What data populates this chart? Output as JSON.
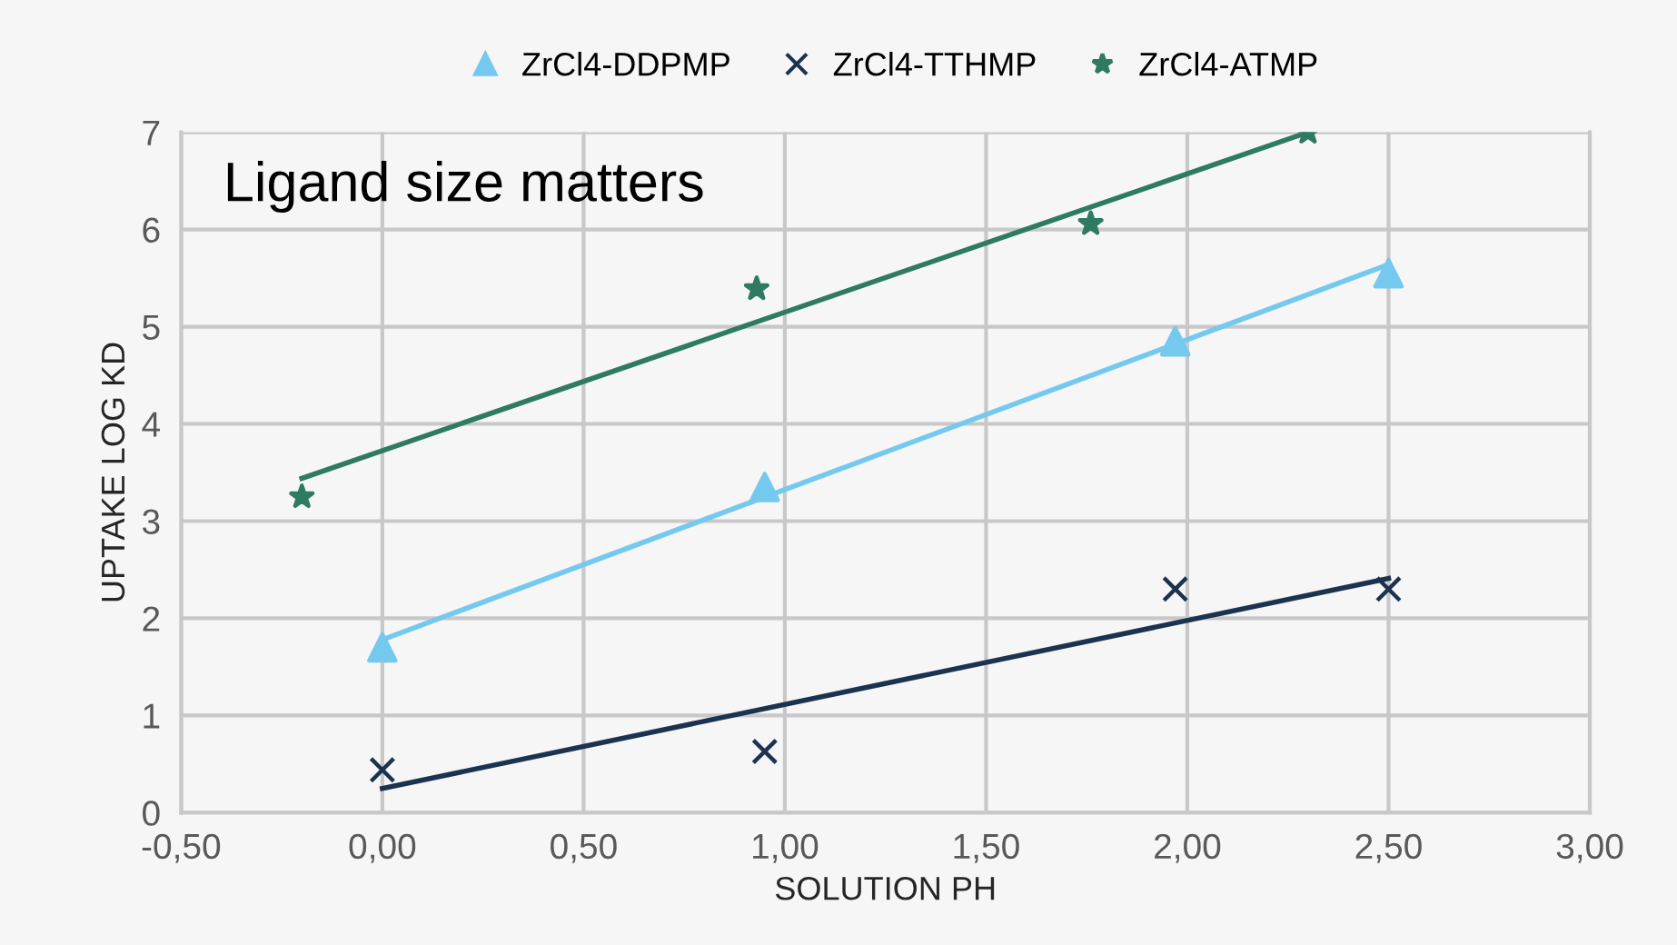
{
  "chart_data": {
    "type": "scatter",
    "xlabel": "SOLUTION PH",
    "ylabel": "UPTAKE LOG KD",
    "annotations": [
      "Ligand size matters"
    ],
    "series": [
      {
        "name": "ZrCl4-DDPMP",
        "marker": "triangle",
        "color": "#75c8ee",
        "x": [
          0.0,
          0.95,
          1.97,
          2.5
        ],
        "values": [
          1.7,
          3.35,
          4.85,
          5.55
        ]
      },
      {
        "name": "ZrCl4-TTHMP",
        "marker": "cross",
        "color": "#1c3350",
        "x": [
          0.0,
          0.95,
          1.97,
          2.5
        ],
        "values": [
          0.44,
          0.63,
          2.3,
          2.3
        ]
      },
      {
        "name": "ZrCl4-ATMP",
        "marker": "star",
        "color": "#2e7a62",
        "x": [
          -0.2,
          0.93,
          1.76,
          2.3
        ],
        "values": [
          3.25,
          5.39,
          6.06,
          7.0
        ]
      },
      {
        "type": "line",
        "color": "#75c8ee",
        "x": [
          0.0,
          2.5
        ],
        "values": [
          1.78,
          5.64
        ]
      },
      {
        "type": "line",
        "color": "#1c3350",
        "x": [
          0.0,
          2.5
        ],
        "values": [
          0.25,
          2.41
        ]
      },
      {
        "type": "line",
        "color": "#2e7a62",
        "x": [
          -0.2,
          2.3
        ],
        "values": [
          3.44,
          7.0
        ]
      }
    ],
    "xlim": [
      -0.5,
      3.0
    ],
    "xticks": [
      {
        "value": -0.5,
        "label": "-0,50"
      },
      {
        "value": 0.0,
        "label": "0,00"
      },
      {
        "value": 0.5,
        "label": "0,50"
      },
      {
        "value": 1.0,
        "label": "1,00"
      },
      {
        "value": 1.5,
        "label": "1,50"
      },
      {
        "value": 2.0,
        "label": "2,00"
      },
      {
        "value": 2.5,
        "label": "2,50"
      },
      {
        "value": 3.0,
        "label": "3,00"
      }
    ],
    "ylim": [
      0,
      7
    ],
    "yticks": [
      0,
      1,
      2,
      3,
      4,
      5,
      6,
      7
    ],
    "grid": true,
    "legend": "top"
  }
}
